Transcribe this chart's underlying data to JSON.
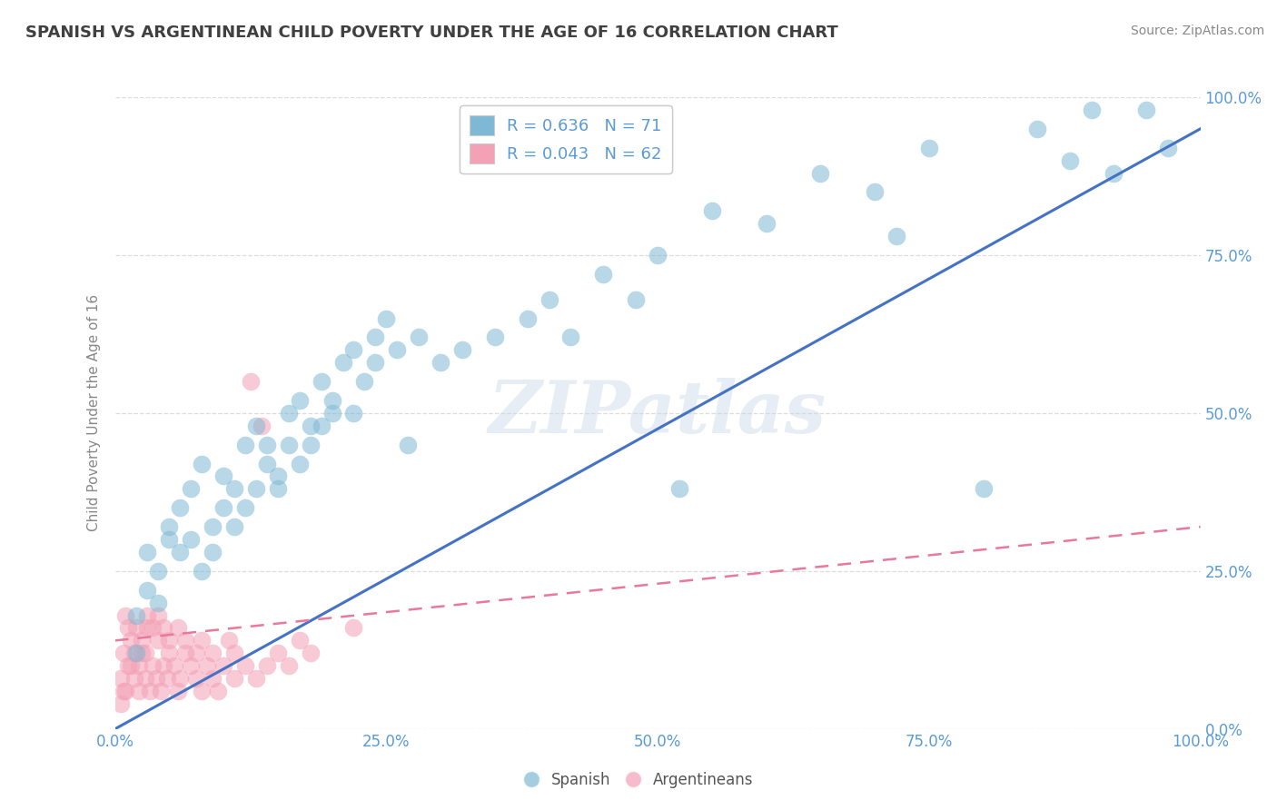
{
  "title": "SPANISH VS ARGENTINEAN CHILD POVERTY UNDER THE AGE OF 16 CORRELATION CHART",
  "source": "Source: ZipAtlas.com",
  "ylabel": "Child Poverty Under the Age of 16",
  "xlim": [
    0,
    1
  ],
  "ylim": [
    0,
    1
  ],
  "xtick_labels": [
    "0.0%",
    "25.0%",
    "50.0%",
    "75.0%",
    "100.0%"
  ],
  "xtick_vals": [
    0,
    0.25,
    0.5,
    0.75,
    1.0
  ],
  "ytick_labels_right": [
    "0.0%",
    "25.0%",
    "50.0%",
    "75.0%",
    "100.0%"
  ],
  "ytick_vals": [
    0,
    0.25,
    0.5,
    0.75,
    1.0
  ],
  "watermark": "ZIPatlas",
  "blue_R": "0.636",
  "blue_N": "71",
  "pink_R": "0.043",
  "pink_N": "62",
  "blue_color": "#7EB8D4",
  "pink_color": "#F4A0B5",
  "blue_line_color": "#4472C4",
  "pink_line_color": "#E8799A",
  "legend_label_blue": "Spanish",
  "legend_label_pink": "Argentineans",
  "title_color": "#404040",
  "axis_label_color": "#888888",
  "tick_color": "#5B9BD5",
  "stat_color": "#5B9BD5",
  "blue_scatter_x": [
    0.02,
    0.03,
    0.02,
    0.04,
    0.03,
    0.05,
    0.04,
    0.05,
    0.06,
    0.06,
    0.07,
    0.08,
    0.07,
    0.09,
    0.08,
    0.1,
    0.09,
    0.1,
    0.11,
    0.11,
    0.12,
    0.13,
    0.12,
    0.14,
    0.13,
    0.15,
    0.14,
    0.16,
    0.15,
    0.17,
    0.16,
    0.18,
    0.17,
    0.19,
    0.2,
    0.18,
    0.21,
    0.2,
    0.22,
    0.19,
    0.23,
    0.24,
    0.22,
    0.25,
    0.24,
    0.26,
    0.28,
    0.3,
    0.27,
    0.32,
    0.35,
    0.38,
    0.4,
    0.42,
    0.45,
    0.5,
    0.48,
    0.55,
    0.52,
    0.6,
    0.65,
    0.7,
    0.75,
    0.72,
    0.8,
    0.85,
    0.9,
    0.88,
    0.95,
    0.92,
    0.97
  ],
  "blue_scatter_y": [
    0.18,
    0.22,
    0.12,
    0.25,
    0.28,
    0.3,
    0.2,
    0.32,
    0.28,
    0.35,
    0.3,
    0.25,
    0.38,
    0.32,
    0.42,
    0.35,
    0.28,
    0.4,
    0.38,
    0.32,
    0.45,
    0.38,
    0.35,
    0.42,
    0.48,
    0.4,
    0.45,
    0.5,
    0.38,
    0.52,
    0.45,
    0.48,
    0.42,
    0.55,
    0.5,
    0.45,
    0.58,
    0.52,
    0.6,
    0.48,
    0.55,
    0.62,
    0.5,
    0.65,
    0.58,
    0.6,
    0.62,
    0.58,
    0.45,
    0.6,
    0.62,
    0.65,
    0.68,
    0.62,
    0.72,
    0.75,
    0.68,
    0.82,
    0.38,
    0.8,
    0.88,
    0.85,
    0.92,
    0.78,
    0.38,
    0.95,
    0.98,
    0.9,
    0.98,
    0.88,
    0.92
  ],
  "pink_scatter_x": [
    0.005,
    0.008,
    0.01,
    0.012,
    0.015,
    0.018,
    0.02,
    0.022,
    0.025,
    0.005,
    0.008,
    0.012,
    0.015,
    0.01,
    0.018,
    0.022,
    0.025,
    0.028,
    0.03,
    0.032,
    0.035,
    0.03,
    0.028,
    0.038,
    0.04,
    0.035,
    0.042,
    0.045,
    0.04,
    0.048,
    0.05,
    0.045,
    0.055,
    0.05,
    0.058,
    0.06,
    0.065,
    0.058,
    0.07,
    0.075,
    0.065,
    0.08,
    0.075,
    0.085,
    0.09,
    0.08,
    0.095,
    0.1,
    0.09,
    0.11,
    0.105,
    0.12,
    0.11,
    0.13,
    0.125,
    0.14,
    0.135,
    0.15,
    0.16,
    0.17,
    0.18,
    0.22
  ],
  "pink_scatter_y": [
    0.08,
    0.12,
    0.06,
    0.1,
    0.14,
    0.08,
    0.16,
    0.1,
    0.12,
    0.04,
    0.06,
    0.16,
    0.1,
    0.18,
    0.12,
    0.06,
    0.14,
    0.08,
    0.16,
    0.06,
    0.1,
    0.18,
    0.12,
    0.08,
    0.14,
    0.16,
    0.06,
    0.1,
    0.18,
    0.08,
    0.14,
    0.16,
    0.1,
    0.12,
    0.06,
    0.08,
    0.12,
    0.16,
    0.1,
    0.08,
    0.14,
    0.06,
    0.12,
    0.1,
    0.08,
    0.14,
    0.06,
    0.1,
    0.12,
    0.08,
    0.14,
    0.1,
    0.12,
    0.08,
    0.55,
    0.1,
    0.48,
    0.12,
    0.1,
    0.14,
    0.12,
    0.16
  ],
  "blue_line_x": [
    0.0,
    1.0
  ],
  "blue_line_y": [
    0.0,
    0.95
  ],
  "pink_line_x": [
    0.0,
    1.0
  ],
  "pink_line_y": [
    0.14,
    0.32
  ],
  "grid_color": "#DDDDDD",
  "background_color": "#FFFFFF"
}
